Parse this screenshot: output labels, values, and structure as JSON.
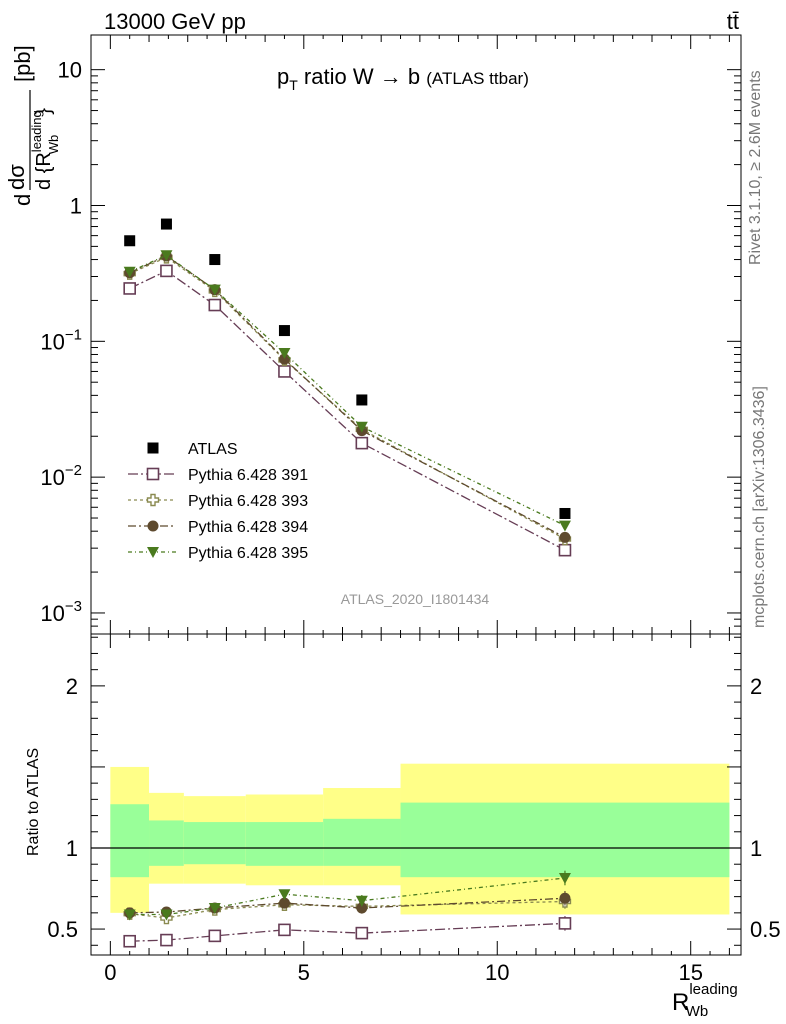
{
  "header": {
    "left": "13000 GeV pp",
    "right": "tt̄"
  },
  "side_labels": {
    "top": "Rivet 3.1.10, ≥ 2.6M events",
    "bottom": "mcplots.cern.ch [arXiv:1306.3436]"
  },
  "analysis_id": "ATLAS_2020_I1801434",
  "colors": {
    "atlas": "#000000",
    "p391": "#663d55",
    "p393": "#8a8a50",
    "p394": "#5e4a2e",
    "p395": "#4a7a1e",
    "band_inner": "#99ff99",
    "band_outer": "#ffff88"
  },
  "chart_data": [
    {
      "panel": "main",
      "type": "scatter",
      "title": "p_T ratio W → b (ATLAS ttbar)",
      "ylabel": "d dσ/d{R_Wb^leading} [pb]",
      "yscale": "log",
      "ylim": [
        0.0007,
        18
      ],
      "xlim": [
        -0.5,
        16.3
      ],
      "y_ticks": [
        {
          "value": 0.001,
          "mantissa": "10",
          "exp": "−3"
        },
        {
          "value": 0.01,
          "mantissa": "10",
          "exp": "−2"
        },
        {
          "value": 0.1,
          "mantissa": "10",
          "exp": "−1"
        },
        {
          "value": 1,
          "mantissa": "1",
          "exp": ""
        },
        {
          "value": 10,
          "mantissa": "10",
          "exp": ""
        }
      ],
      "legend_position": "bottom-left",
      "x": [
        0.5,
        1.45,
        2.7,
        4.5,
        6.5,
        11.75
      ],
      "series": [
        {
          "name": "ATLAS",
          "key": "atlas",
          "marker": "square-filled",
          "values": [
            0.55,
            0.73,
            0.4,
            0.12,
            0.037,
            0.0054
          ]
        },
        {
          "name": "Pythia 6.428 391",
          "key": "p391",
          "marker": "square-open",
          "values": [
            0.245,
            0.33,
            0.185,
            0.06,
            0.0178,
            0.0029
          ]
        },
        {
          "name": "Pythia 6.428 393",
          "key": "p393",
          "marker": "cross-open",
          "values": [
            0.315,
            0.415,
            0.235,
            0.073,
            0.0225,
            0.0035
          ]
        },
        {
          "name": "Pythia 6.428 394",
          "key": "p394",
          "marker": "circle-filled",
          "values": [
            0.32,
            0.425,
            0.24,
            0.074,
            0.022,
            0.0036
          ]
        },
        {
          "name": "Pythia 6.428 395",
          "key": "p395",
          "marker": "triangle-down",
          "values": [
            0.325,
            0.43,
            0.24,
            0.082,
            0.0235,
            0.0044
          ]
        }
      ]
    },
    {
      "panel": "ratio",
      "type": "scatter",
      "ylabel": "Ratio to ATLAS",
      "ylim": [
        0.34,
        2.32
      ],
      "xlim": [
        -0.5,
        16.3
      ],
      "xlabel": "R_Wb^leading",
      "x_ticks": [
        0,
        5,
        10,
        15
      ],
      "y_ticks": [
        0.5,
        1,
        2
      ],
      "bands": [
        {
          "x": [
            0,
            1
          ],
          "inner": [
            0.82,
            1.27
          ],
          "outer": [
            0.6,
            1.5
          ]
        },
        {
          "x": [
            1,
            1.9
          ],
          "inner": [
            0.89,
            1.17
          ],
          "outer": [
            0.78,
            1.34
          ]
        },
        {
          "x": [
            1.9,
            3.5
          ],
          "inner": [
            0.9,
            1.16
          ],
          "outer": [
            0.78,
            1.32
          ]
        },
        {
          "x": [
            3.5,
            5.5
          ],
          "inner": [
            0.89,
            1.16
          ],
          "outer": [
            0.77,
            1.33
          ]
        },
        {
          "x": [
            5.5,
            7.5
          ],
          "inner": [
            0.89,
            1.18
          ],
          "outer": [
            0.77,
            1.37
          ]
        },
        {
          "x": [
            7.5,
            16
          ],
          "inner": [
            0.82,
            1.28
          ],
          "outer": [
            0.59,
            1.52
          ]
        }
      ],
      "x": [
        0.5,
        1.45,
        2.7,
        4.5,
        6.5,
        11.75
      ],
      "series": [
        {
          "name": "Pythia 6.428 391",
          "key": "p391",
          "marker": "square-open",
          "values": [
            0.425,
            0.432,
            0.458,
            0.495,
            0.475,
            0.535
          ],
          "err": [
            0.01,
            0.01,
            0.01,
            0.02,
            0.035,
            0.045
          ]
        },
        {
          "name": "Pythia 6.428 393",
          "key": "p393",
          "marker": "cross-open",
          "values": [
            0.595,
            0.568,
            0.62,
            0.65,
            0.64,
            0.67
          ],
          "err": [
            0.01,
            0.01,
            0.01,
            0.02,
            0.035,
            0.045
          ]
        },
        {
          "name": "Pythia 6.428 394",
          "key": "p394",
          "marker": "circle-filled",
          "values": [
            0.6,
            0.605,
            0.63,
            0.66,
            0.63,
            0.69
          ],
          "err": [
            0.01,
            0.01,
            0.01,
            0.02,
            0.035,
            0.045
          ]
        },
        {
          "name": "Pythia 6.428 395",
          "key": "p395",
          "marker": "triangle-down",
          "values": [
            0.59,
            0.59,
            0.63,
            0.715,
            0.675,
            0.815
          ],
          "err": [
            0.01,
            0.01,
            0.01,
            0.02,
            0.035,
            0.045
          ]
        }
      ]
    }
  ]
}
